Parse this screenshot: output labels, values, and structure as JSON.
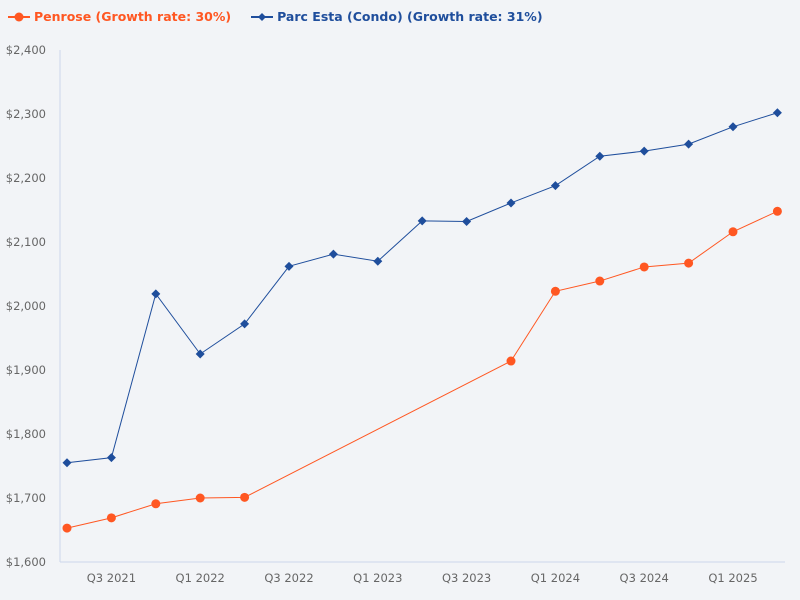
{
  "chart_data": {
    "type": "line",
    "title": "",
    "xlabel": "",
    "ylabel": "",
    "categories": [
      "Q2 2021",
      "Q3 2021",
      "Q4 2021",
      "Q1 2022",
      "Q2 2022",
      "Q3 2022",
      "Q4 2022",
      "Q1 2023",
      "Q2 2023",
      "Q3 2023",
      "Q4 2023",
      "Q1 2024",
      "Q2 2024",
      "Q3 2024",
      "Q4 2024",
      "Q1 2025",
      "Q2 2025"
    ],
    "x_tick_labels": [
      "Q3 2021",
      "Q1 2022",
      "Q3 2022",
      "Q1 2023",
      "Q3 2023",
      "Q1 2024",
      "Q3 2024",
      "Q1 2025"
    ],
    "y_tick_labels": [
      "$1,600",
      "$1,700",
      "$1,800",
      "$1,900",
      "$2,000",
      "$2,100",
      "$2,200",
      "$2,300",
      "$2,400"
    ],
    "ylim": [
      1600,
      2400
    ],
    "grid": false,
    "legend_position": "top-left",
    "series": [
      {
        "name": "Penrose (Growth rate: 30%)",
        "color": "#ff5722",
        "marker": "circle",
        "values": [
          1653,
          1669,
          1691,
          1700,
          1701,
          null,
          null,
          null,
          null,
          null,
          1914,
          2023,
          2039,
          2061,
          2067,
          2116,
          2148
        ]
      },
      {
        "name": "Parc Esta (Condo) (Growth rate: 31%)",
        "color": "#1f4e9c",
        "marker": "diamond",
        "values": [
          1755,
          1763,
          2019,
          1925,
          1972,
          2062,
          2081,
          2070,
          2133,
          2132,
          2161,
          2188,
          2234,
          2242,
          2253,
          2280,
          2302
        ]
      }
    ]
  }
}
